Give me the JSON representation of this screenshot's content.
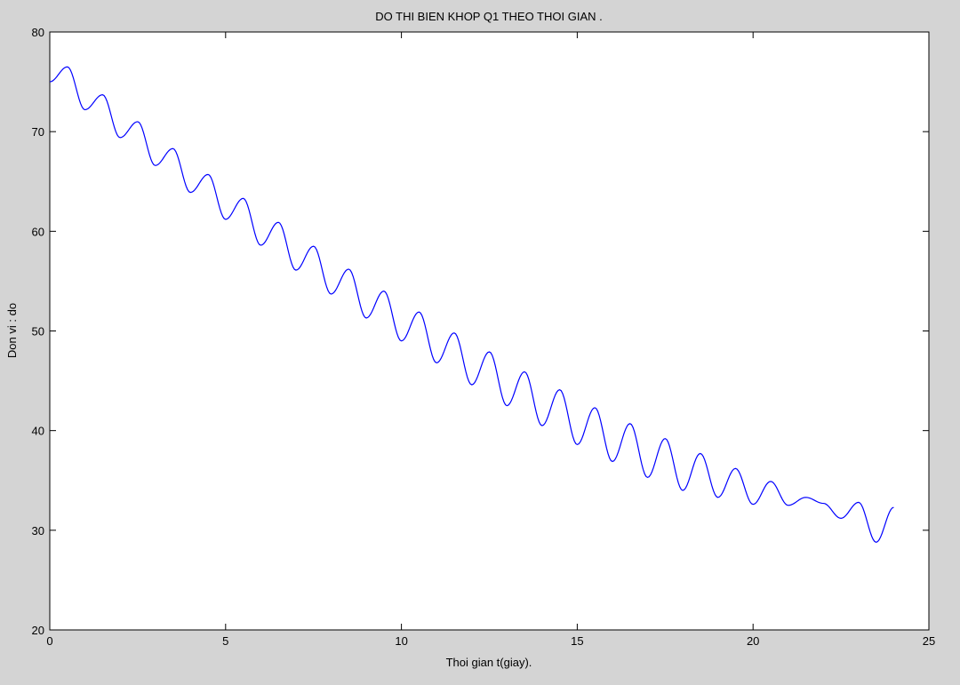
{
  "chart_data": {
    "type": "line",
    "title": "DO THI BIEN KHOP Q1 THEO THOI GIAN .",
    "xlabel": "Thoi gian t(giay).",
    "ylabel": "Don vi : do",
    "xlim": [
      0,
      25
    ],
    "ylim": [
      20,
      80
    ],
    "xticks": [
      0,
      5,
      10,
      15,
      20,
      25
    ],
    "yticks": [
      20,
      30,
      40,
      50,
      60,
      70,
      80
    ],
    "xtick_labels": [
      "0",
      "5",
      "10",
      "15",
      "20",
      "25"
    ],
    "ytick_labels": [
      "20",
      "30",
      "40",
      "50",
      "60",
      "70",
      "80"
    ],
    "grid": false,
    "line_color": "#0000ff",
    "series": [
      {
        "x": [
          0,
          0.5,
          1,
          1.5,
          2,
          2.5,
          3,
          3.5,
          4,
          4.5,
          5,
          5.5,
          6,
          6.5,
          7,
          7.5,
          8,
          8.5,
          9,
          9.5,
          10,
          10.5,
          11,
          11.5,
          12,
          12.5,
          13,
          13.5,
          14,
          14.5,
          15,
          15.5,
          16,
          16.5,
          17,
          17.5,
          18,
          18.5,
          19,
          19.5,
          20,
          20.5,
          21,
          21.5,
          22,
          22.5,
          23,
          23.5,
          24
        ],
        "y": [
          75.0,
          76.5,
          72.2,
          73.7,
          69.4,
          71.0,
          66.6,
          68.3,
          63.9,
          65.7,
          61.2,
          63.3,
          58.6,
          60.9,
          56.1,
          58.5,
          53.7,
          56.2,
          51.3,
          54.0,
          49.0,
          51.9,
          46.8,
          49.8,
          44.6,
          47.9,
          42.5,
          45.9,
          40.5,
          44.1,
          38.6,
          42.3,
          36.9,
          40.7,
          35.3,
          39.2,
          34.0,
          37.7,
          33.3,
          36.2,
          32.6,
          34.9,
          32.5,
          33.3,
          32.7,
          31.2,
          32.8,
          28.8,
          32.3
        ]
      }
    ]
  }
}
